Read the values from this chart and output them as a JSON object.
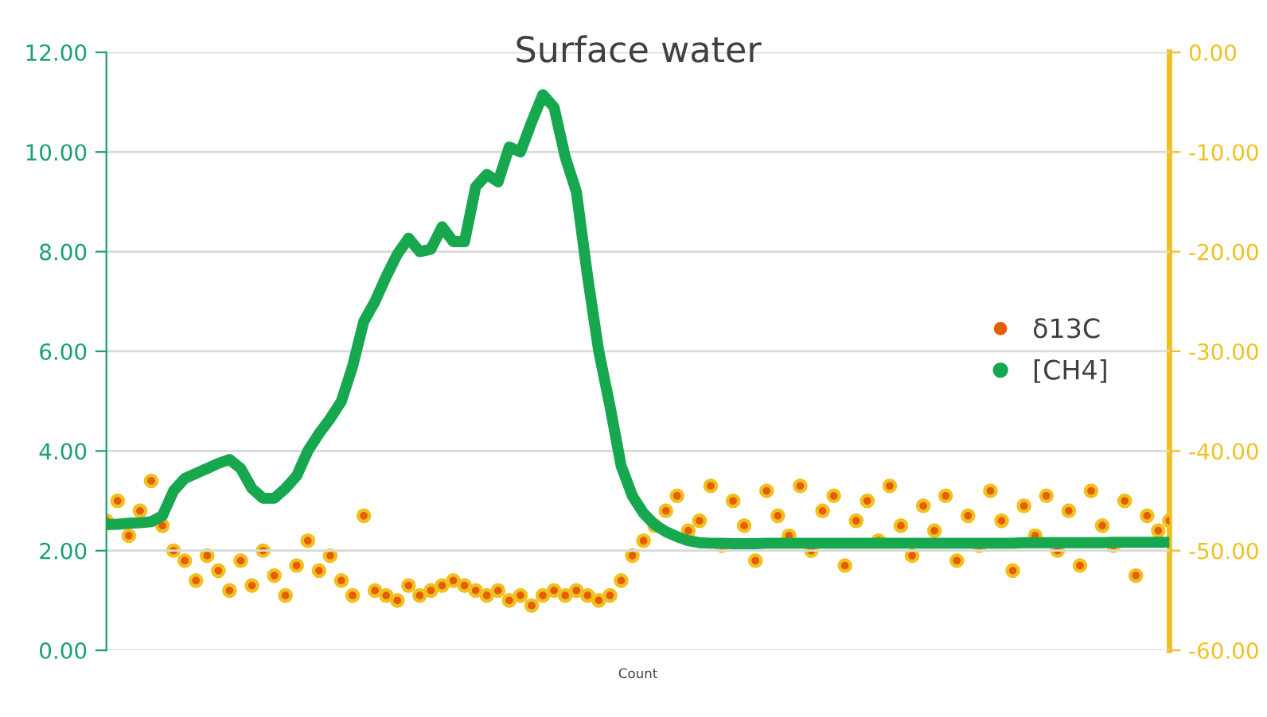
{
  "chart_data": {
    "type": "line",
    "title": "Surface water",
    "xlabel": "Count",
    "categories": [
      null,
      null,
      null,
      null,
      null,
      null,
      null,
      null,
      null,
      null,
      null,
      null,
      null,
      null,
      null,
      null,
      null,
      null,
      null,
      null,
      null,
      null,
      null,
      null,
      null,
      null,
      null,
      null,
      null,
      null,
      null,
      null,
      null,
      null,
      null,
      null,
      null,
      null,
      null,
      null,
      null,
      null,
      null,
      null,
      null,
      null,
      null,
      null,
      null,
      null,
      null,
      null,
      null,
      null,
      null,
      null,
      null,
      null,
      null,
      null,
      null,
      null,
      null,
      null,
      null,
      null,
      null,
      null,
      null,
      null,
      null,
      null,
      null,
      null,
      null,
      null,
      null,
      null,
      null,
      null,
      null,
      null,
      null,
      null,
      null,
      null,
      null,
      null,
      null,
      null,
      null,
      null,
      null,
      null,
      null,
      null
    ],
    "series": [
      {
        "name": "δ13C",
        "type": "scatter",
        "axis": "y2",
        "color": "#e65c00",
        "marker": "circle",
        "values": [
          -47,
          -45,
          -48.5,
          -46,
          -43,
          -47.5,
          -50,
          -51,
          -53,
          -50.5,
          -52,
          -54,
          -51,
          -53.5,
          -50,
          -52.5,
          -54.5,
          -51.5,
          -49,
          -52,
          -50.5,
          -53,
          -54.5,
          -46.5,
          -54,
          -54.5,
          -55,
          -53.5,
          -54.5,
          -54,
          -53.5,
          -53,
          -53.5,
          -54,
          -54.5,
          -54,
          -55,
          -54.5,
          -55.5,
          -54.5,
          -54,
          -54.5,
          -54,
          -54.5,
          -55,
          -54.5,
          -53,
          -50.5,
          -49,
          -47.5,
          -46,
          -44.5,
          -48,
          -47,
          -43.5,
          -49.5,
          -45,
          -47.5,
          -51,
          -44,
          -46.5,
          -48.5,
          -43.5,
          -50,
          -46,
          -44.5,
          -51.5,
          -47,
          -45,
          -49,
          -43.5,
          -47.5,
          -50.5,
          -45.5,
          -48,
          -44.5,
          -51,
          -46.5,
          -49.5,
          -44,
          -47,
          -52,
          -45.5,
          -48.5,
          -44.5,
          -50,
          -46,
          -51.5,
          -44,
          -47.5,
          -49.5,
          -45,
          -52.5,
          -46.5,
          -48,
          -47
        ]
      },
      {
        "name": "[CH4]",
        "color": "#17a84f",
        "values": [
          2.52,
          2.53,
          2.55,
          2.56,
          2.58,
          2.7,
          3.2,
          3.45,
          3.55,
          3.65,
          3.75,
          3.83,
          3.65,
          3.25,
          3.05,
          3.05,
          3.25,
          3.5,
          4.0,
          4.35,
          4.65,
          5.0,
          5.7,
          6.6,
          7.0,
          7.5,
          7.95,
          8.27,
          8.0,
          8.05,
          8.5,
          8.2,
          8.2,
          9.3,
          9.55,
          9.4,
          10.1,
          10.0,
          10.6,
          11.15,
          10.9,
          9.9,
          9.2,
          7.5,
          6.0,
          4.9,
          3.7,
          3.1,
          2.75,
          2.52,
          2.38,
          2.28,
          2.2,
          2.16,
          2.15,
          2.15,
          2.14,
          2.14,
          2.14,
          2.15,
          2.15,
          2.15,
          2.15,
          2.15,
          2.15,
          2.15,
          2.15,
          2.15,
          2.15,
          2.15,
          2.15,
          2.15,
          2.15,
          2.15,
          2.15,
          2.15,
          2.15,
          2.15,
          2.15,
          2.15,
          2.15,
          2.15,
          2.16,
          2.16,
          2.16,
          2.16,
          2.16,
          2.16,
          2.16,
          2.16,
          2.17,
          2.17,
          2.17,
          2.17,
          2.17,
          2.17
        ]
      }
    ],
    "ylim": [
      0,
      12
    ],
    "yticks": [
      {
        "value": 0,
        "label": "0.00"
      },
      {
        "value": 2,
        "label": "2.00"
      },
      {
        "value": 4,
        "label": "4.00"
      },
      {
        "value": 6,
        "label": "6.00"
      },
      {
        "value": 8,
        "label": "8.00"
      },
      {
        "value": 10,
        "label": "10.00"
      },
      {
        "value": 12,
        "label": "12.00"
      }
    ],
    "y2lim": [
      -60,
      0
    ],
    "y2ticks": [
      {
        "value": -60,
        "label": "-60.00"
      },
      {
        "value": -50,
        "label": "-50.00"
      },
      {
        "value": -40,
        "label": "-40.00"
      },
      {
        "value": -30,
        "label": "-30.00"
      },
      {
        "value": -20,
        "label": "-20.00"
      },
      {
        "value": -10,
        "label": "-10.00"
      },
      {
        "value": 0,
        "label": "0.00"
      }
    ],
    "grid": "y",
    "legend": "right",
    "tick_labels": "y"
  }
}
